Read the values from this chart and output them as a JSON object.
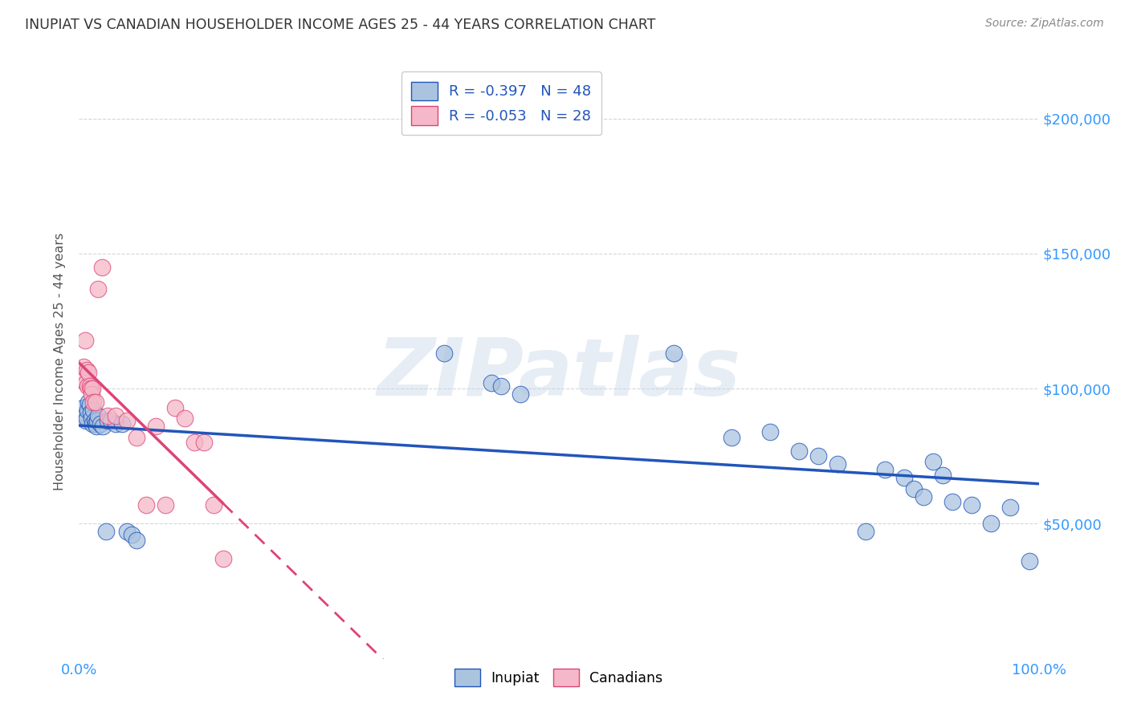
{
  "title": "INUPIAT VS CANADIAN HOUSEHOLDER INCOME AGES 25 - 44 YEARS CORRELATION CHART",
  "source": "Source: ZipAtlas.com",
  "ylabel": "Householder Income Ages 25 - 44 years",
  "xlim": [
    0,
    1.0
  ],
  "ylim": [
    0,
    220000
  ],
  "xtick_labels": [
    "0.0%",
    "100.0%"
  ],
  "ytick_labels": [
    "$50,000",
    "$100,000",
    "$150,000",
    "$200,000"
  ],
  "ytick_values": [
    50000,
    100000,
    150000,
    200000
  ],
  "watermark": "ZIPatlas",
  "inupiat_x": [
    0.004,
    0.006,
    0.007,
    0.008,
    0.009,
    0.01,
    0.011,
    0.012,
    0.013,
    0.014,
    0.015,
    0.016,
    0.017,
    0.018,
    0.019,
    0.02,
    0.022,
    0.025,
    0.028,
    0.03,
    0.033,
    0.038,
    0.045,
    0.05,
    0.055,
    0.06,
    0.38,
    0.43,
    0.44,
    0.46,
    0.62,
    0.68,
    0.72,
    0.75,
    0.77,
    0.79,
    0.82,
    0.84,
    0.86,
    0.87,
    0.88,
    0.89,
    0.9,
    0.91,
    0.93,
    0.95,
    0.97,
    0.99
  ],
  "inupiat_y": [
    93000,
    90000,
    88000,
    89000,
    92000,
    95000,
    94000,
    91000,
    89000,
    87000,
    92000,
    88000,
    87000,
    86000,
    88000,
    90000,
    87000,
    86000,
    47000,
    88000,
    88000,
    87000,
    87000,
    47000,
    46000,
    44000,
    113000,
    102000,
    101000,
    98000,
    113000,
    82000,
    84000,
    77000,
    75000,
    72000,
    47000,
    70000,
    67000,
    63000,
    60000,
    73000,
    68000,
    58000,
    57000,
    50000,
    56000,
    36000
  ],
  "canadian_x": [
    0.004,
    0.005,
    0.006,
    0.007,
    0.008,
    0.009,
    0.01,
    0.011,
    0.012,
    0.013,
    0.014,
    0.015,
    0.017,
    0.02,
    0.024,
    0.03,
    0.038,
    0.05,
    0.06,
    0.07,
    0.08,
    0.09,
    0.1,
    0.11,
    0.12,
    0.13,
    0.14,
    0.15
  ],
  "canadian_y": [
    103000,
    108000,
    118000,
    102000,
    107000,
    101000,
    106000,
    101000,
    100000,
    98000,
    100000,
    95000,
    95000,
    137000,
    145000,
    90000,
    90000,
    88000,
    82000,
    57000,
    86000,
    57000,
    93000,
    89000,
    80000,
    80000,
    57000,
    37000
  ],
  "inupiat_color": "#aac4e0",
  "inupiat_line_color": "#2255bb",
  "canadian_color": "#f5b8c8",
  "canadian_line_color": "#dd4477",
  "R_inupiat": "-0.397",
  "N_inupiat": "48",
  "R_canadian": "-0.053",
  "N_canadian": "28",
  "legend_inupiat": "Inupiat",
  "legend_canadian": "Canadians",
  "background_color": "#ffffff",
  "grid_color": "#cccccc",
  "title_color": "#333333",
  "axis_color": "#3399ff",
  "watermark_color": "#c8d8e8",
  "watermark_alpha": 0.45
}
